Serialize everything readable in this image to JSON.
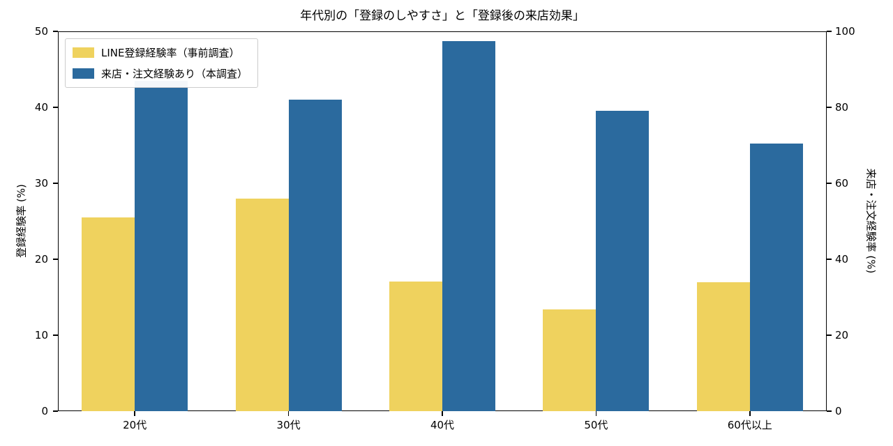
{
  "chart_data": {
    "type": "bar",
    "title": "年代別の「登録のしやすさ」と「登録後の来店効果」",
    "categories": [
      "20代",
      "30代",
      "40代",
      "50代",
      "60代以上"
    ],
    "series": [
      {
        "name": "LINE登録経験率（事前調査）",
        "axis": "left",
        "color": "#efd25e",
        "values": [
          25.5,
          28.0,
          17.1,
          13.4,
          17.0
        ]
      },
      {
        "name": "来店・注文経験あり（本調査）",
        "axis": "right",
        "color": "#2b6a9e",
        "values": [
          87,
          82,
          97.5,
          79,
          70.5
        ]
      }
    ],
    "left_axis": {
      "label": "登録経験率 (%)",
      "min": 0,
      "max": 50,
      "ticks": [
        0,
        10,
        20,
        30,
        40,
        50
      ]
    },
    "right_axis": {
      "label": "来店・注文経験率 (%)",
      "min": 0,
      "max": 100,
      "ticks": [
        0,
        20,
        40,
        60,
        80,
        100
      ]
    },
    "legend_position": "upper left",
    "grid": false
  }
}
